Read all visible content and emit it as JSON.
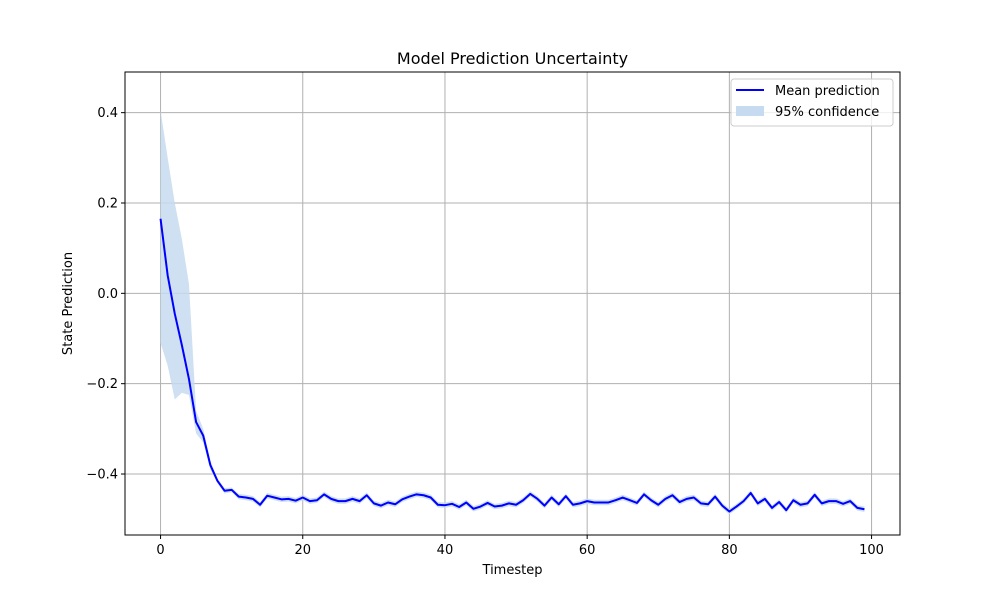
{
  "chart_data": {
    "type": "line",
    "title": "Model Prediction Uncertainty",
    "xlabel": "Timestep",
    "ylabel": "State Prediction",
    "xlim": [
      -5,
      104
    ],
    "ylim": [
      -0.535,
      0.49
    ],
    "x_ticks": [
      0,
      20,
      40,
      60,
      80,
      100
    ],
    "x_tick_labels": [
      "0",
      "20",
      "40",
      "60",
      "80",
      "100"
    ],
    "y_ticks": [
      -0.4,
      -0.2,
      0.0,
      0.2,
      0.4
    ],
    "y_tick_labels": [
      "−0.4",
      "−0.2",
      "0.0",
      "0.2",
      "0.4"
    ],
    "grid": true,
    "legend_position": "top-right",
    "colors": {
      "mean": "#0000ff",
      "band": "#c6dbef"
    },
    "series": [
      {
        "name": "Mean prediction",
        "kind": "line",
        "x": [
          0,
          1,
          2,
          3,
          4,
          5,
          6,
          7,
          8,
          9,
          10,
          11,
          12,
          13,
          14,
          15,
          16,
          17,
          18,
          19,
          20,
          21,
          22,
          23,
          24,
          25,
          26,
          27,
          28,
          29,
          30,
          31,
          32,
          33,
          34,
          35,
          36,
          37,
          38,
          39,
          40,
          41,
          42,
          43,
          44,
          45,
          46,
          47,
          48,
          49,
          50,
          51,
          52,
          53,
          54,
          55,
          56,
          57,
          58,
          59,
          60,
          61,
          62,
          63,
          64,
          65,
          66,
          67,
          68,
          69,
          70,
          71,
          72,
          73,
          74,
          75,
          76,
          77,
          78,
          79,
          80,
          81,
          82,
          83,
          84,
          85,
          86,
          87,
          88,
          89,
          90,
          91,
          92,
          93,
          94,
          95,
          96,
          97,
          98,
          99
        ],
        "y": [
          0.165,
          0.04,
          -0.045,
          -0.115,
          -0.19,
          -0.285,
          -0.315,
          -0.38,
          -0.415,
          -0.437,
          -0.435,
          -0.45,
          -0.452,
          -0.455,
          -0.468,
          -0.448,
          -0.452,
          -0.456,
          -0.455,
          -0.459,
          -0.452,
          -0.46,
          -0.458,
          -0.445,
          -0.455,
          -0.46,
          -0.46,
          -0.455,
          -0.46,
          -0.447,
          -0.465,
          -0.47,
          -0.463,
          -0.467,
          -0.456,
          -0.45,
          -0.445,
          -0.447,
          -0.452,
          -0.468,
          -0.469,
          -0.466,
          -0.473,
          -0.463,
          -0.477,
          -0.472,
          -0.464,
          -0.472,
          -0.47,
          -0.465,
          -0.468,
          -0.458,
          -0.444,
          -0.455,
          -0.47,
          -0.452,
          -0.467,
          -0.449,
          -0.468,
          -0.465,
          -0.46,
          -0.463,
          -0.463,
          -0.463,
          -0.458,
          -0.452,
          -0.458,
          -0.464,
          -0.445,
          -0.458,
          -0.468,
          -0.455,
          -0.447,
          -0.462,
          -0.455,
          -0.452,
          -0.465,
          -0.467,
          -0.45,
          -0.47,
          -0.483,
          -0.472,
          -0.46,
          -0.442,
          -0.465,
          -0.455,
          -0.475,
          -0.462,
          -0.48,
          -0.458,
          -0.468,
          -0.465,
          -0.446,
          -0.465,
          -0.46,
          -0.46,
          -0.466,
          -0.46,
          -0.475,
          -0.478
        ]
      },
      {
        "name": "95% confidence",
        "kind": "band",
        "x": [
          0,
          1,
          2,
          3,
          4,
          5,
          6,
          7,
          8,
          9,
          10
        ],
        "lower": [
          -0.11,
          -0.16,
          -0.235,
          -0.22,
          -0.225,
          -0.31,
          -0.33,
          -0.39,
          -0.42,
          -0.443,
          -0.44
        ],
        "upper": [
          0.405,
          0.3,
          0.2,
          0.12,
          0.02,
          -0.26,
          -0.3,
          -0.37,
          -0.41,
          -0.431,
          -0.43
        ],
        "band_halfwidth_after": 0.006
      }
    ]
  }
}
